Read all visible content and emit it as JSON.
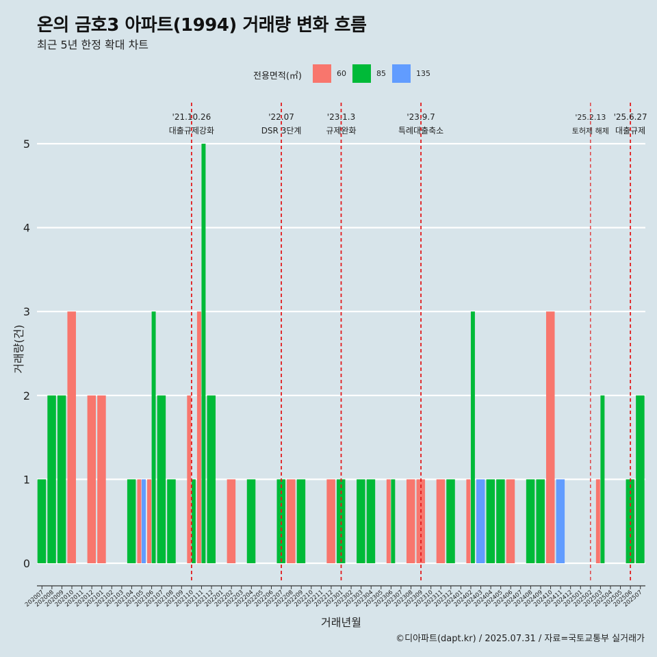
{
  "title": "온의 금호3 아파트(1994) 거래량 변화 흐름",
  "subtitle": "최근 5년 한정 확대 차트",
  "caption": "©디아파트(dapt.kr) / 2025.07.31 / 자료=국토교통부 실거래가",
  "chart_data": {
    "type": "bar",
    "title": "온의 금호3 아파트(1994) 거래량 변화 흐름",
    "subtitle": "최근 5년 한정 확대 차트",
    "xlabel": "거래년월",
    "ylabel": "거래량(건)",
    "ylim": [
      0,
      5
    ],
    "yticks": [
      0,
      1,
      2,
      3,
      4,
      5
    ],
    "grid": true,
    "legend": {
      "title": "전용면적(㎡)",
      "position": "top"
    },
    "categories": [
      "202007",
      "202008",
      "202009",
      "202010",
      "202011",
      "202012",
      "202101",
      "202102",
      "202103",
      "202104",
      "202105",
      "202106",
      "202107",
      "202108",
      "202109",
      "202110",
      "202111",
      "202112",
      "202201",
      "202202",
      "202203",
      "202204",
      "202205",
      "202206",
      "202207",
      "202208",
      "202209",
      "202210",
      "202211",
      "202212",
      "202301",
      "202302",
      "202303",
      "202304",
      "202305",
      "202306",
      "202307",
      "202308",
      "202309",
      "202310",
      "202311",
      "202312",
      "202401",
      "202402",
      "202403",
      "202404",
      "202405",
      "202406",
      "202407",
      "202408",
      "202409",
      "202410",
      "202411",
      "202412",
      "202501",
      "202502",
      "202503",
      "202504",
      "202505",
      "202506",
      "202507"
    ],
    "series": [
      {
        "name": "60",
        "color": "#f8766d",
        "values": [
          0,
          0,
          0,
          3,
          0,
          2,
          2,
          0,
          0,
          0,
          1,
          1,
          0,
          0,
          0,
          2,
          3,
          0,
          0,
          1,
          0,
          0,
          0,
          0,
          0,
          1,
          0,
          0,
          0,
          1,
          0,
          0,
          0,
          0,
          0,
          1,
          0,
          1,
          1,
          0,
          1,
          0,
          0,
          1,
          0,
          0,
          0,
          1,
          0,
          0,
          0,
          3,
          0,
          0,
          0,
          0,
          1,
          0,
          0,
          0,
          0
        ]
      },
      {
        "name": "85",
        "color": "#00ba38",
        "values": [
          1,
          2,
          2,
          0,
          0,
          0,
          0,
          0,
          0,
          1,
          0,
          3,
          2,
          1,
          0,
          1,
          5,
          2,
          0,
          0,
          0,
          1,
          0,
          0,
          1,
          0,
          1,
          0,
          0,
          0,
          1,
          0,
          1,
          1,
          0,
          1,
          0,
          0,
          0,
          0,
          0,
          1,
          0,
          3,
          0,
          1,
          1,
          0,
          0,
          1,
          1,
          0,
          0,
          0,
          0,
          0,
          2,
          0,
          0,
          1,
          2
        ]
      },
      {
        "name": "135",
        "color": "#619cff",
        "values": [
          0,
          0,
          0,
          0,
          0,
          0,
          0,
          0,
          0,
          0,
          1,
          0,
          0,
          0,
          0,
          0,
          0,
          0,
          0,
          0,
          0,
          0,
          0,
          0,
          0,
          0,
          0,
          0,
          0,
          0,
          0,
          0,
          0,
          0,
          0,
          0,
          0,
          0,
          0,
          0,
          0,
          0,
          0,
          0,
          1,
          0,
          0,
          0,
          0,
          0,
          0,
          0,
          1,
          0,
          0,
          0,
          0,
          0,
          0,
          0,
          0
        ]
      }
    ],
    "annotations": [
      {
        "date": "'21.10.26",
        "label": "대출규제강화",
        "at": "202110"
      },
      {
        "date": "'22.07",
        "label": "DSR 3단계",
        "at": "202207"
      },
      {
        "date": "'23.1.3",
        "label": "규제완화",
        "at": "202301"
      },
      {
        "date": "'23.9.7",
        "label": "특례대출축소",
        "at": "202309"
      },
      {
        "date": "'25.2.13",
        "label": "토허제 해제",
        "at": "202502"
      },
      {
        "date": "'25.6.27",
        "label": "대출규제",
        "at": "202506"
      }
    ]
  }
}
